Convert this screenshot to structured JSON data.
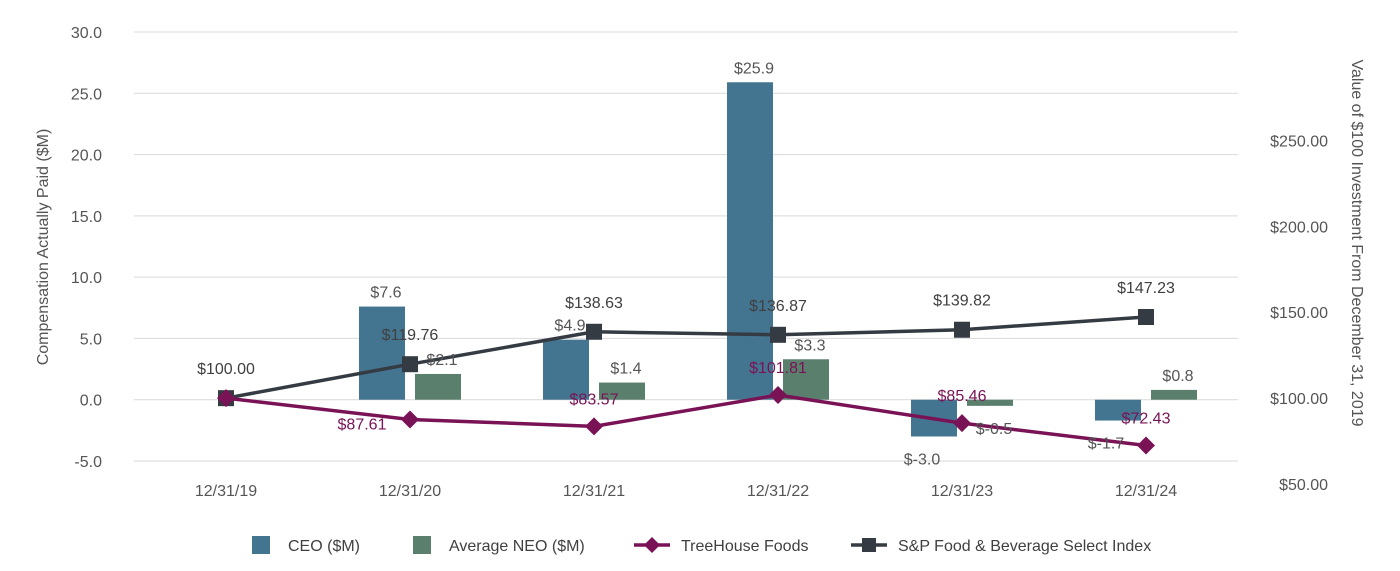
{
  "chart_data": {
    "type": "bar",
    "categories": [
      "12/31/19",
      "12/31/20",
      "12/31/21",
      "12/31/22",
      "12/31/23",
      "12/31/24"
    ],
    "ylabel": "Compensation Actually Paid ($M)",
    "y2label": "Value of $100 Investment From December 31, 2019",
    "ylim": [
      -5,
      30
    ],
    "yticks": [
      "-5.0",
      "0.0",
      "5.0",
      "10.0",
      "15.0",
      "20.0",
      "25.0",
      "30.0"
    ],
    "y2lim": [
      0,
      250
    ],
    "y2ticks": [
      "$50.00",
      "$100.00",
      "$150.00",
      "$200.00",
      "$250.00"
    ],
    "grid": true,
    "legend_position": "bottom",
    "series": [
      {
        "name": "CEO ($M)",
        "kind": "bar",
        "axis": "left",
        "color": "#447590",
        "values": [
          null,
          7.6,
          4.9,
          25.9,
          -3.0,
          -1.7
        ],
        "labels": [
          "",
          "$7.6",
          "$4.9",
          "$25.9",
          "$-3.0",
          "$-1.7"
        ]
      },
      {
        "name": "Average NEO ($M)",
        "kind": "bar",
        "axis": "left",
        "color": "#5b7f6d",
        "values": [
          null,
          2.1,
          1.4,
          3.3,
          -0.5,
          0.8
        ],
        "labels": [
          "",
          "$2.1",
          "$1.4",
          "$3.3",
          "$-0.5",
          "$0.8"
        ]
      },
      {
        "name": "TreeHouse Foods",
        "kind": "line",
        "axis": "right",
        "marker": "diamond",
        "color": "#7a1256",
        "values": [
          100.0,
          87.61,
          83.57,
          101.81,
          85.46,
          72.43
        ],
        "labels": [
          "",
          "$87.61",
          "$83.57",
          "$101.81",
          "$85.46",
          "$72.43"
        ]
      },
      {
        "name": "S&P Food & Beverage Select Index",
        "kind": "line",
        "axis": "right",
        "marker": "square",
        "color": "#353b42",
        "values": [
          100.0,
          119.76,
          138.63,
          136.87,
          139.82,
          147.23
        ],
        "labels": [
          "$100.00",
          "$119.76",
          "$138.63",
          "$136.87",
          "$139.82",
          "$147.23"
        ]
      }
    ]
  }
}
